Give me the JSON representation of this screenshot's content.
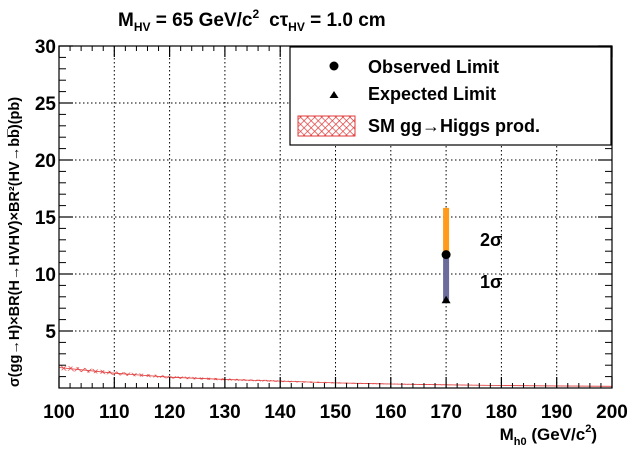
{
  "chart_data": {
    "type": "scatter",
    "title": {
      "prefix": "M",
      "prefix_sub": "HV",
      "mid": " = 65 GeV/c",
      "mid_sup": "2",
      "ctau_pre": "cτ",
      "ctau_sub": "HV",
      "ctau_val": " = 1.0 cm"
    },
    "ylabel": "σ(gg→H)×BR(H→HVHV)×BR²(HV→bb̅)(pb)",
    "xlabel": {
      "main": "M",
      "sub": "h0",
      "units": " (GeV/c",
      "units_sup": "2",
      "close": ")"
    },
    "xlim": [
      100,
      200
    ],
    "ylim": [
      0,
      30
    ],
    "x_ticks": [
      "100",
      "110",
      "120",
      "130",
      "140",
      "150",
      "160",
      "170",
      "180",
      "190",
      "200"
    ],
    "y_ticks": [
      "5",
      "10",
      "15",
      "20",
      "25",
      "30"
    ],
    "grid": true,
    "legend_position": "top-right",
    "legend": [
      {
        "label": "Observed Limit",
        "marker": "circle"
      },
      {
        "label": "Expected Limit",
        "marker": "triangle"
      },
      {
        "label": "SM gg→Higgs prod.",
        "marker": "hatched-box"
      }
    ],
    "observed": {
      "x": 170,
      "y": 11.7
    },
    "expected": {
      "x": 170,
      "y": 7.7
    },
    "band_1sigma": {
      "x": 170,
      "low": 7.7,
      "high": 11.7,
      "color": "#6b6b9c"
    },
    "band_2sigma": {
      "x": 170,
      "low": 11.7,
      "high": 15.8,
      "color": "#ff9a1a"
    },
    "band_labels": {
      "two_sigma": "2σ",
      "one_sigma": "1σ"
    },
    "sm_band": {
      "x": [
        100,
        110,
        120,
        130,
        140,
        150,
        160,
        170,
        180,
        190,
        200
      ],
      "y": [
        1.8,
        1.3,
        0.95,
        0.75,
        0.6,
        0.45,
        0.35,
        0.28,
        0.22,
        0.18,
        0.15
      ],
      "color": "#e03a3a"
    }
  }
}
